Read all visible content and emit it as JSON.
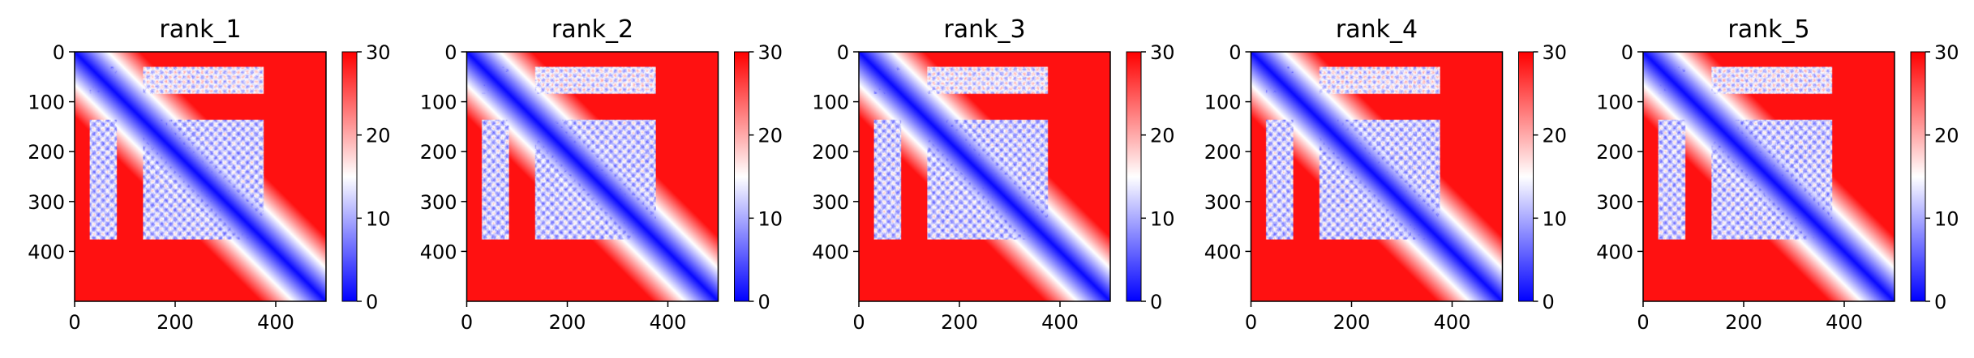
{
  "chart_data": [
    {
      "type": "heatmap",
      "title": "rank_1",
      "matrix_size": 500,
      "xticks": [
        0,
        200,
        400
      ],
      "yticks": [
        0,
        100,
        200,
        300,
        400
      ],
      "colorbar": {
        "min": 0,
        "max": 30,
        "ticks": [
          0,
          10,
          20,
          30
        ],
        "colors": [
          "#0000ff",
          "#ffffff",
          "#ff0000"
        ]
      }
    },
    {
      "type": "heatmap",
      "title": "rank_2",
      "matrix_size": 500,
      "xticks": [
        0,
        200,
        400
      ],
      "yticks": [
        0,
        100,
        200,
        300,
        400
      ],
      "colorbar": {
        "min": 0,
        "max": 30,
        "ticks": [
          0,
          10,
          20,
          30
        ],
        "colors": [
          "#0000ff",
          "#ffffff",
          "#ff0000"
        ]
      }
    },
    {
      "type": "heatmap",
      "title": "rank_3",
      "matrix_size": 500,
      "xticks": [
        0,
        200,
        400
      ],
      "yticks": [
        0,
        100,
        200,
        300,
        400
      ],
      "colorbar": {
        "min": 0,
        "max": 30,
        "ticks": [
          0,
          10,
          20,
          30
        ],
        "colors": [
          "#0000ff",
          "#ffffff",
          "#ff0000"
        ]
      }
    },
    {
      "type": "heatmap",
      "title": "rank_4",
      "matrix_size": 500,
      "xticks": [
        0,
        200,
        400
      ],
      "yticks": [
        0,
        100,
        200,
        300,
        400
      ],
      "colorbar": {
        "min": 0,
        "max": 30,
        "ticks": [
          0,
          10,
          20,
          30
        ],
        "colors": [
          "#0000ff",
          "#ffffff",
          "#ff0000"
        ]
      }
    },
    {
      "type": "heatmap",
      "title": "rank_5",
      "matrix_size": 500,
      "xticks": [
        0,
        200,
        400
      ],
      "yticks": [
        0,
        100,
        200,
        300,
        400
      ],
      "colorbar": {
        "min": 0,
        "max": 30,
        "ticks": [
          0,
          10,
          20,
          30
        ],
        "colors": [
          "#0000ff",
          "#ffffff",
          "#ff0000"
        ]
      }
    }
  ]
}
